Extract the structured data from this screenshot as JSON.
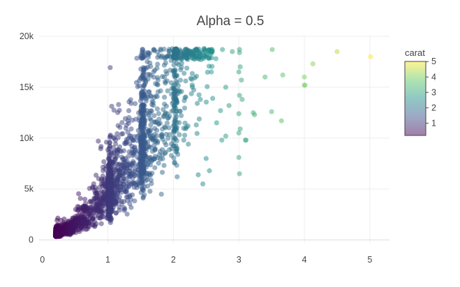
{
  "chart_data": {
    "type": "scatter",
    "title": "Alpha = 0.5",
    "xlabel": "",
    "ylabel": "",
    "xlim": [
      -0.05,
      5.3
    ],
    "ylim": [
      -300,
      20000
    ],
    "x_ticks": [
      0,
      1,
      2,
      3,
      4,
      5
    ],
    "x_tick_labels": [
      "0",
      "1",
      "2",
      "3",
      "4",
      "5"
    ],
    "y_ticks": [
      0,
      5000,
      10000,
      15000,
      20000
    ],
    "y_tick_labels": [
      "0",
      "5k",
      "10k",
      "15k",
      "20k"
    ],
    "grid": true,
    "opacity": 0.5,
    "color_by": "carat",
    "colorbar": {
      "title": "carat",
      "range": [
        0.2,
        5.01
      ],
      "ticks": [
        1,
        2,
        3,
        4,
        5
      ],
      "tick_labels": [
        "1",
        "2",
        "3",
        "4",
        "5"
      ],
      "colorscale": [
        "#440154",
        "#3b528b",
        "#21918c",
        "#5ec962",
        "#fde725"
      ]
    },
    "points": [
      {
        "x": 3.01,
        "y": 18710
      },
      {
        "x": 3.01,
        "y": 18400
      },
      {
        "x": 3.02,
        "y": 17000
      },
      {
        "x": 3.0,
        "y": 16500
      },
      {
        "x": 3.04,
        "y": 15700
      },
      {
        "x": 3.01,
        "y": 14200
      },
      {
        "x": 3.05,
        "y": 13800
      },
      {
        "x": 3.0,
        "y": 12400
      },
      {
        "x": 3.02,
        "y": 10900
      },
      {
        "x": 3.0,
        "y": 10500
      },
      {
        "x": 3.1,
        "y": 9800
      },
      {
        "x": 3.0,
        "y": 8100
      },
      {
        "x": 3.01,
        "y": 6500
      },
      {
        "x": 3.11,
        "y": 9800
      },
      {
        "x": 3.22,
        "y": 12500
      },
      {
        "x": 3.24,
        "y": 12300
      },
      {
        "x": 3.4,
        "y": 16000
      },
      {
        "x": 3.5,
        "y": 12600
      },
      {
        "x": 3.51,
        "y": 18700
      },
      {
        "x": 3.65,
        "y": 11700
      },
      {
        "x": 3.67,
        "y": 16200
      },
      {
        "x": 4.0,
        "y": 15200
      },
      {
        "x": 4.01,
        "y": 15200
      },
      {
        "x": 4.0,
        "y": 16000
      },
      {
        "x": 4.13,
        "y": 17300
      },
      {
        "x": 4.5,
        "y": 18500
      },
      {
        "x": 5.01,
        "y": 18000
      },
      {
        "x": 2.75,
        "y": 18700
      },
      {
        "x": 2.8,
        "y": 15000
      },
      {
        "x": 2.74,
        "y": 9800
      },
      {
        "x": 2.66,
        "y": 11500
      },
      {
        "x": 2.55,
        "y": 6800
      },
      {
        "x": 2.5,
        "y": 8000
      },
      {
        "x": 2.8,
        "y": 10200
      },
      {
        "x": 2.72,
        "y": 12700
      },
      {
        "x": 2.6,
        "y": 13900
      },
      {
        "x": 2.45,
        "y": 5500
      },
      {
        "x": 2.38,
        "y": 6400
      },
      {
        "x": 2.58,
        "y": 16500
      },
      {
        "x": 2.65,
        "y": 17800
      },
      {
        "x": 2.9,
        "y": 18500
      },
      {
        "x": 2.85,
        "y": 13200
      }
    ]
  }
}
